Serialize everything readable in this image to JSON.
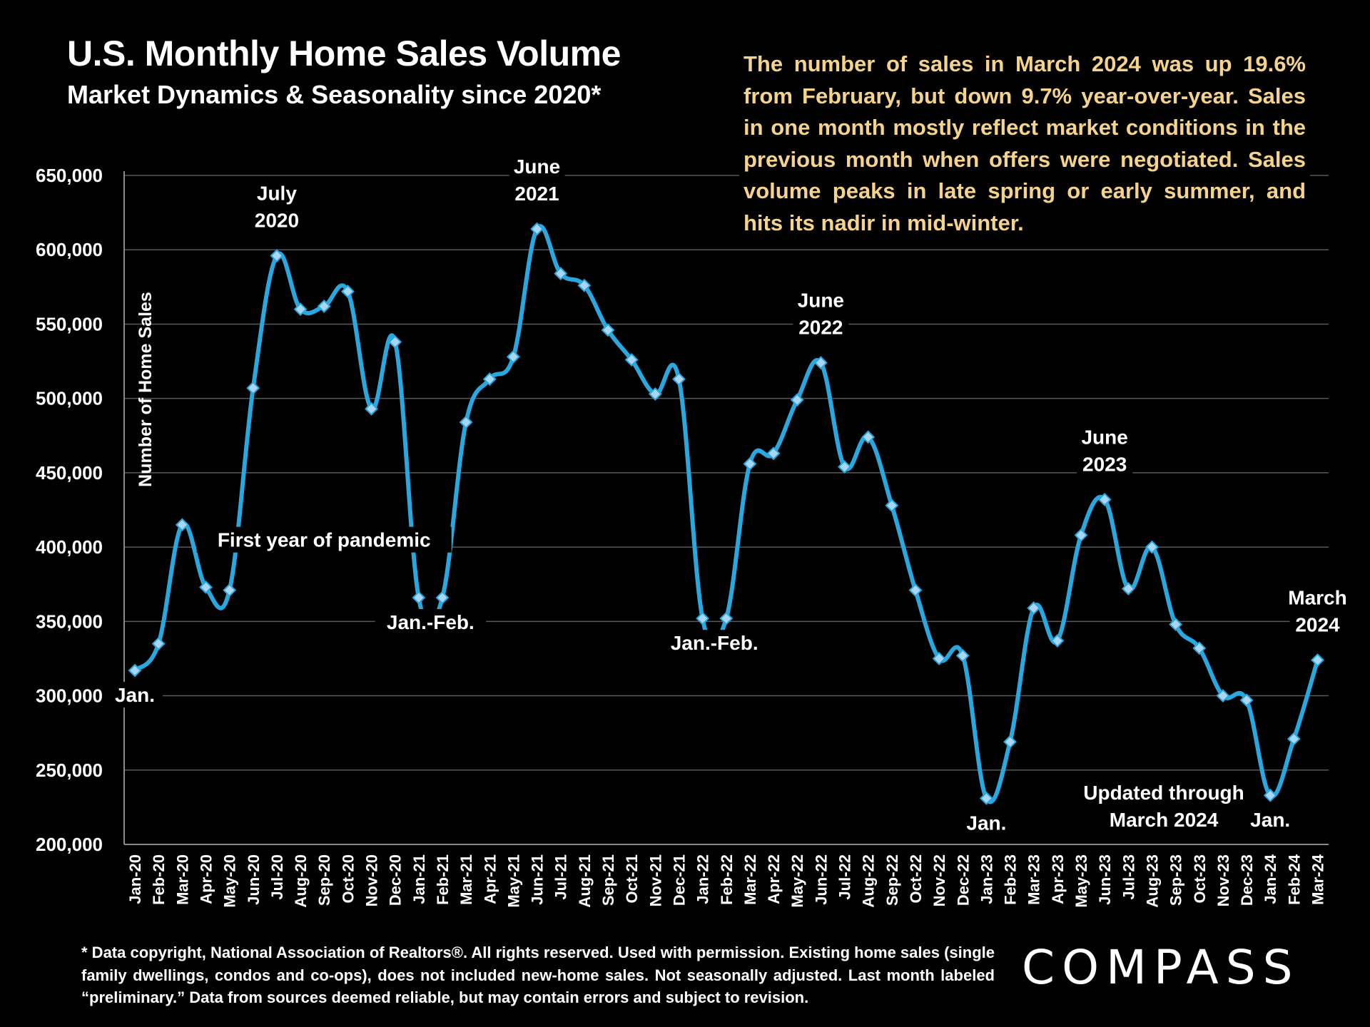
{
  "header": {
    "title": "U.S. Monthly Home Sales Volume",
    "subtitle": "Market Dynamics & Seasonality since 2020*"
  },
  "callout": {
    "text": "The number of sales in March 2024 was up 19.6% from February, but down 9.7% year-over-year. Sales in one month mostly reflect market conditions in the previous month when offers were negotiated. Sales volume peaks in late spring or early summer, and hits its nadir in mid-winter."
  },
  "footnote": {
    "text": "* Data copyright, National Association of Realtors®. All rights reserved. Used with permission. Existing home sales (single family dwellings, condos and co-ops), does not included new-home sales. Not seasonally adjusted. Last month labeled “preliminary.” Data from sources deemed reliable, but may contain errors and subject to revision."
  },
  "logo": {
    "text": "COMPASS"
  },
  "colors": {
    "line": "#29a8e0",
    "marker": "#a9d6f5",
    "grid": "#595959",
    "callout": "#f5d38a"
  },
  "chart_data": {
    "type": "line",
    "title": "U.S. Monthly Home Sales Volume",
    "ylabel": "Number of Home Sales",
    "xlabel": "",
    "ylim": [
      200000,
      650000
    ],
    "yticks": [
      200000,
      250000,
      300000,
      350000,
      400000,
      450000,
      500000,
      550000,
      600000,
      650000
    ],
    "ytick_labels": [
      "200,000",
      "250,000",
      "300,000",
      "350,000",
      "400,000",
      "450,000",
      "500,000",
      "550,000",
      "600,000",
      "650,000"
    ],
    "grid": true,
    "categories": [
      "Jan-20",
      "Feb-20",
      "Mar-20",
      "Apr-20",
      "May-20",
      "Jun-20",
      "Jul-20",
      "Aug-20",
      "Sep-20",
      "Oct-20",
      "Nov-20",
      "Dec-20",
      "Jan-21",
      "Feb-21",
      "Mar-21",
      "Apr-21",
      "May-21",
      "Jun-21",
      "Jul-21",
      "Aug-21",
      "Sep-21",
      "Oct-21",
      "Nov-21",
      "Dec-21",
      "Jan-22",
      "Feb-22",
      "Mar-22",
      "Apr-22",
      "May-22",
      "Jun-22",
      "Jul-22",
      "Aug-22",
      "Sep-22",
      "Oct-22",
      "Nov-22",
      "Dec-22",
      "Jan-23",
      "Feb-23",
      "Mar-23",
      "Apr-23",
      "May-23",
      "Jun-23",
      "Jul-23",
      "Aug-23",
      "Sep-23",
      "Oct-23",
      "Nov-23",
      "Dec-23",
      "Jan-24",
      "Feb-24",
      "Mar-24"
    ],
    "series": [
      {
        "name": "Home Sales",
        "values": [
          317000,
          335000,
          415000,
          373000,
          371000,
          507000,
          596000,
          560000,
          562000,
          572000,
          493000,
          538000,
          366000,
          366000,
          484000,
          513000,
          528000,
          614000,
          584000,
          576000,
          546000,
          526000,
          503000,
          513000,
          352000,
          352000,
          456000,
          463000,
          499000,
          524000,
          454000,
          474000,
          428000,
          371000,
          325000,
          327000,
          231000,
          269000,
          359000,
          337000,
          408000,
          432000,
          372000,
          400000,
          348000,
          332000,
          300000,
          297000,
          233000,
          271000,
          324000
        ]
      }
    ],
    "annotations": [
      {
        "id": "jan-20",
        "lines": [
          "Jan."
        ],
        "index": 0,
        "value": 317000,
        "pos": "below"
      },
      {
        "id": "jul-20",
        "lines": [
          "July",
          "2020"
        ],
        "index": 6,
        "value": 596000,
        "pos": "above"
      },
      {
        "id": "pandemic",
        "lines": [
          "First year of pandemic"
        ],
        "index": 8,
        "value": 405000,
        "pos": "center"
      },
      {
        "id": "janfeb-21",
        "lines": [
          "Jan.-Feb."
        ],
        "index": 12.5,
        "value": 366000,
        "pos": "below"
      },
      {
        "id": "jun-21",
        "lines": [
          "June",
          "2021"
        ],
        "index": 17,
        "value": 614000,
        "pos": "above"
      },
      {
        "id": "janfeb-22",
        "lines": [
          "Jan.-Feb."
        ],
        "index": 24.5,
        "value": 352000,
        "pos": "below"
      },
      {
        "id": "jun-22",
        "lines": [
          "June",
          "2022"
        ],
        "index": 29,
        "value": 524000,
        "pos": "above"
      },
      {
        "id": "jan-23",
        "lines": [
          "Jan."
        ],
        "index": 36,
        "value": 231000,
        "pos": "below"
      },
      {
        "id": "jun-23",
        "lines": [
          "June",
          "2023"
        ],
        "index": 41,
        "value": 432000,
        "pos": "above"
      },
      {
        "id": "updated",
        "lines": [
          "Updated through",
          "March 2024"
        ],
        "index": 43.5,
        "value": 226000,
        "pos": "center"
      },
      {
        "id": "jan-24",
        "lines": [
          "Jan."
        ],
        "index": 48,
        "value": 233000,
        "pos": "below"
      },
      {
        "id": "mar-24",
        "lines": [
          "March",
          "2024"
        ],
        "index": 50,
        "value": 324000,
        "pos": "above"
      }
    ]
  }
}
